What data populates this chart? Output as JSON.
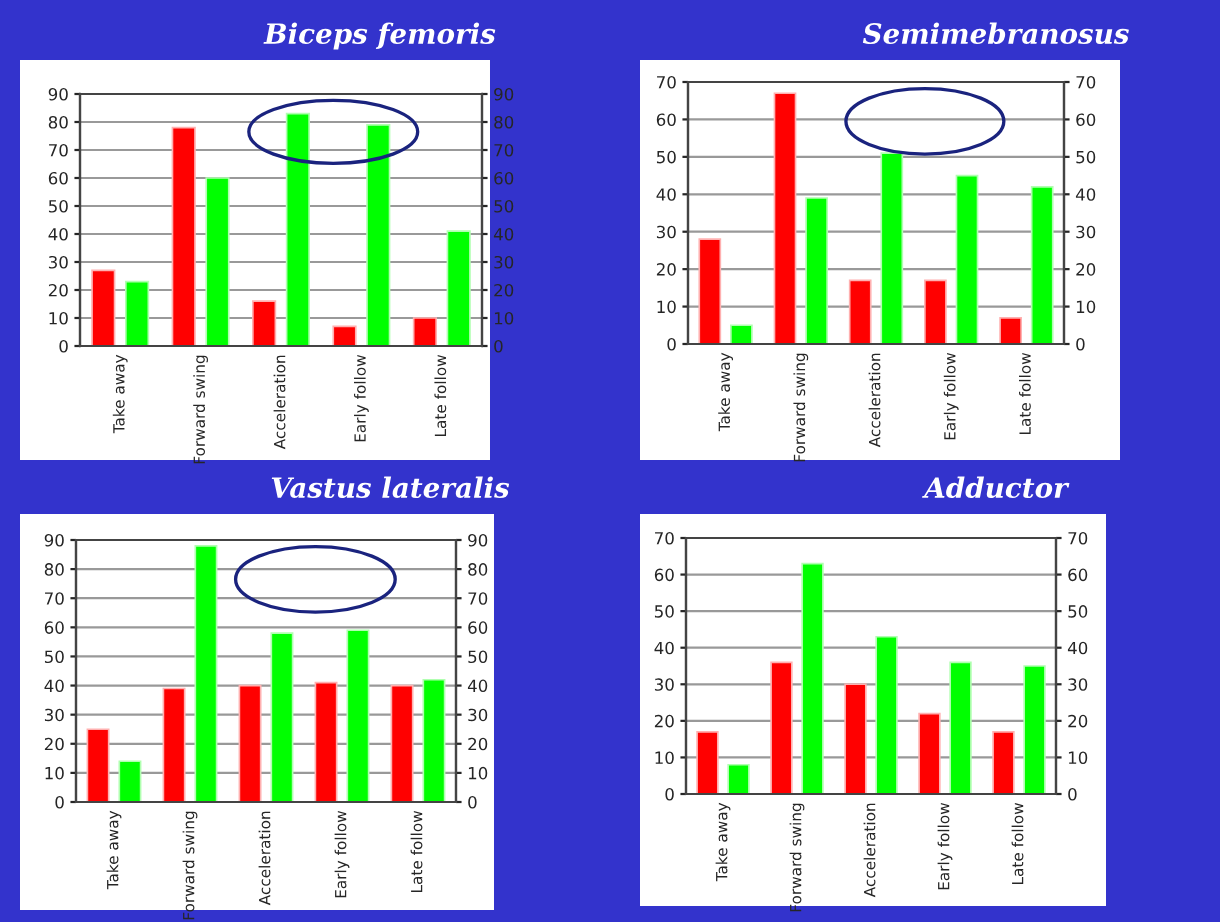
{
  "chart_data": [
    {
      "type": "bar",
      "title": "Biceps femoris",
      "categories": [
        "Take away",
        "Forward swing",
        "Acceleration",
        "Early follow",
        "Late follow"
      ],
      "series": [
        {
          "color": "#ff0000",
          "values": [
            27,
            78,
            16,
            7,
            10
          ]
        },
        {
          "color": "#00ff00",
          "values": [
            23,
            60,
            83,
            79,
            41
          ]
        }
      ],
      "ylim": [
        0,
        90
      ],
      "yticks": [
        0,
        10,
        20,
        30,
        40,
        50,
        60,
        70,
        80,
        90
      ],
      "y2lim": [
        0,
        90
      ],
      "y2ticks": [
        0,
        10,
        20,
        30,
        40,
        50,
        60,
        70,
        80,
        90
      ],
      "grid": true,
      "legend": false
    },
    {
      "type": "bar",
      "title": "Semimebranosus",
      "categories": [
        "Take away",
        "Forward swing",
        "Acceleration",
        "Early follow",
        "Late follow"
      ],
      "series": [
        {
          "color": "#ff0000",
          "values": [
            28,
            67,
            17,
            17,
            7
          ]
        },
        {
          "color": "#00ff00",
          "values": [
            5,
            39,
            51,
            45,
            42
          ]
        }
      ],
      "ylim": [
        0,
        70
      ],
      "yticks": [
        0,
        10,
        20,
        30,
        40,
        50,
        60,
        70
      ],
      "y2lim": [
        0,
        70
      ],
      "y2ticks": [
        0,
        10,
        20,
        30,
        40,
        50,
        60,
        70
      ],
      "grid": true,
      "legend": false
    },
    {
      "type": "bar",
      "title": "Vastus lateralis",
      "categories": [
        "Take away",
        "Forward swing",
        "Acceleration",
        "Early follow",
        "Late follow"
      ],
      "series": [
        {
          "color": "#ff0000",
          "values": [
            25,
            39,
            40,
            41,
            40
          ]
        },
        {
          "color": "#00ff00",
          "values": [
            14,
            88,
            58,
            59,
            42
          ]
        }
      ],
      "ylim": [
        0,
        90
      ],
      "yticks": [
        0,
        10,
        20,
        30,
        40,
        50,
        60,
        70,
        80,
        90
      ],
      "y2lim": [
        0,
        90
      ],
      "y2ticks": [
        0,
        10,
        20,
        30,
        40,
        50,
        60,
        70,
        80,
        90
      ],
      "grid": true,
      "legend": false
    },
    {
      "type": "bar",
      "title": "Adductor",
      "categories": [
        "Take away",
        "Forward swing",
        "Acceleration",
        "Early follow",
        "Late follow"
      ],
      "series": [
        {
          "color": "#ff0000",
          "values": [
            17,
            36,
            30,
            22,
            17
          ]
        },
        {
          "color": "#00ff00",
          "values": [
            8,
            63,
            43,
            36,
            35
          ]
        }
      ],
      "ylim": [
        0,
        70
      ],
      "yticks": [
        0,
        10,
        20,
        30,
        40,
        50,
        60,
        70
      ],
      "y2lim": [
        0,
        70
      ],
      "y2ticks": [
        0,
        10,
        20,
        30,
        40,
        50,
        60,
        70
      ],
      "grid": true,
      "legend": false
    }
  ]
}
